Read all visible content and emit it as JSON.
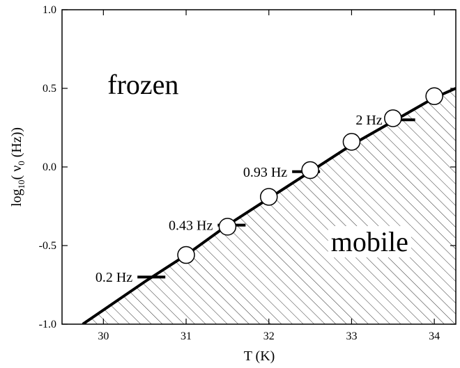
{
  "chart_data": {
    "type": "scatter",
    "x_label": "T (K)",
    "y_label": {
      "base": "log",
      "base_sub": "10",
      "mid": "( ν",
      "mid_sub": "0",
      "end": " (Hz))"
    },
    "xlim": [
      29.5,
      34.26
    ],
    "ylim": [
      -1.0,
      1.0
    ],
    "xticks": [
      30,
      31,
      32,
      33,
      34
    ],
    "yticks": [
      {
        "value": 1.0,
        "label": "1.0"
      },
      0.5,
      {
        "value": 0.0,
        "label": "0.0"
      },
      -0.5,
      {
        "value": -1.0,
        "label": "-1.0"
      }
    ],
    "points": {
      "x": [
        31,
        31.5,
        32,
        32.5,
        33,
        33.5,
        34
      ],
      "y": [
        -0.56,
        -0.38,
        -0.19,
        -0.02,
        0.16,
        0.31,
        0.45
      ]
    },
    "curve": {
      "x": [
        29.75,
        30.5,
        31,
        31.5,
        32,
        32.5,
        33,
        33.5,
        34,
        34.26
      ],
      "y": [
        -1.0,
        -0.73,
        -0.56,
        -0.37,
        -0.2,
        -0.03,
        0.14,
        0.29,
        0.44,
        0.5
      ]
    },
    "markers": [
      {
        "label": "0.2 Hz",
        "x": 30.58,
        "y": -0.7
      },
      {
        "label": "0.43 Hz",
        "x": 31.55,
        "y": -0.37
      },
      {
        "label": "0.93 Hz",
        "x": 32.45,
        "y": -0.03
      },
      {
        "label": "2 Hz",
        "x": 33.6,
        "y": 0.3
      }
    ],
    "annotations": [
      {
        "text": "frozen",
        "x": 30.05,
        "y": 0.5
      },
      {
        "text": "mobile",
        "x": 32.75,
        "y": -0.5
      }
    ]
  }
}
